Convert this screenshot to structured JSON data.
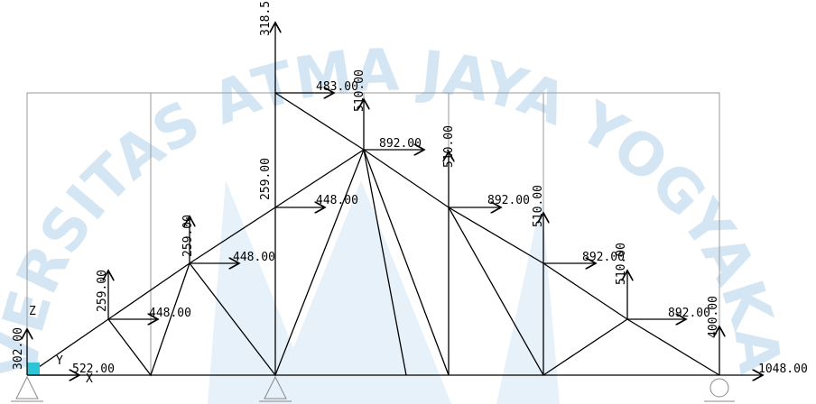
{
  "watermark": "UNIVERSITAS ATMA JAYA YOGYAKARTA",
  "axes": {
    "z": "Z",
    "y": "Y",
    "x": "X"
  },
  "vertical_loads": [
    "318.50",
    "510.00",
    "510.00",
    "510.00",
    "510.00",
    "259.00",
    "259.00",
    "259.00",
    "302.00",
    "400.00"
  ],
  "horizontal_loads": [
    "483.00",
    "892.00",
    "892.00",
    "892.00",
    "892.00",
    "448.00",
    "448.00",
    "448.00",
    "522.00",
    "1048.00"
  ]
}
